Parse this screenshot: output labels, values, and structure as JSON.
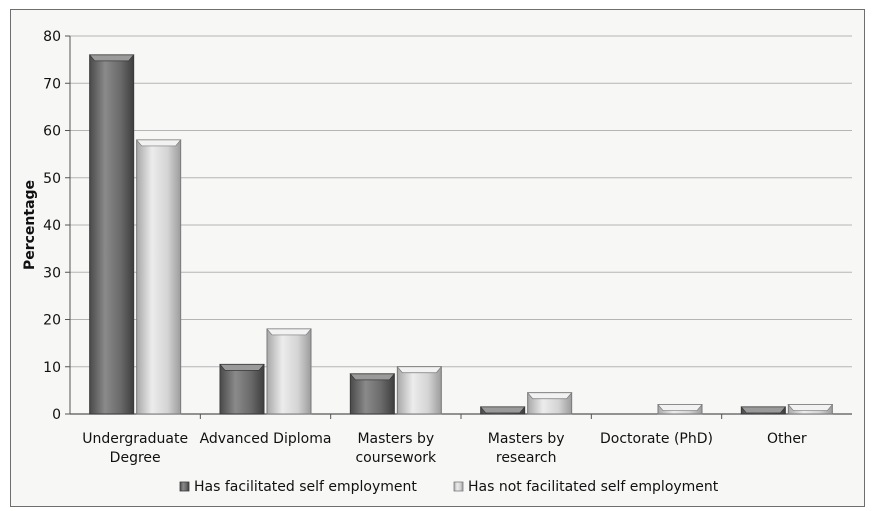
{
  "chart_data": {
    "type": "bar",
    "categories": [
      [
        "Undergraduate",
        "Degree"
      ],
      [
        "Advanced Diploma"
      ],
      [
        "Masters by",
        "coursework"
      ],
      [
        "Masters by",
        "research"
      ],
      [
        "Doctorate (PhD)"
      ],
      [
        "Other"
      ]
    ],
    "series": [
      {
        "name": "Has facilitated self employment",
        "values": [
          76,
          10.5,
          8.5,
          1.5,
          0,
          1.5
        ],
        "color": "#6b6b6b"
      },
      {
        "name": "Has not facilitated self employment",
        "values": [
          58,
          18,
          10,
          4.5,
          2,
          2
        ],
        "color": "#c9c9c9"
      }
    ],
    "title": "",
    "xlabel": "",
    "ylabel": "Percentage",
    "ylim": [
      0,
      80
    ],
    "yticks": [
      0,
      10,
      20,
      30,
      40,
      50,
      60,
      70,
      80
    ],
    "grid": true,
    "legend_position": "bottom"
  }
}
